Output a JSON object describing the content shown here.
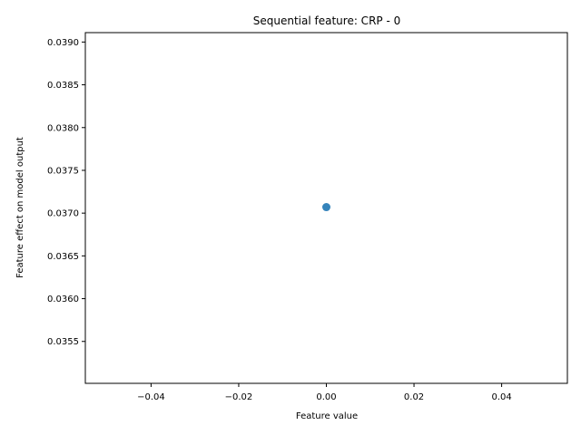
{
  "chart_data": {
    "type": "scatter",
    "title": "Sequential feature: CRP - 0",
    "xlabel": "Feature value",
    "ylabel": "Feature effect on model output",
    "xlim": [
      -0.055,
      0.055
    ],
    "ylim": [
      0.03501,
      0.03911
    ],
    "x_ticks": [
      -0.04,
      -0.02,
      0.0,
      0.02,
      0.04
    ],
    "x_tick_labels": [
      "−0.04",
      "−0.02",
      "0.00",
      "0.02",
      "0.04"
    ],
    "y_ticks": [
      0.0355,
      0.036,
      0.0365,
      0.037,
      0.0375,
      0.038,
      0.0385,
      0.039
    ],
    "y_tick_labels": [
      "0.0355",
      "0.0360",
      "0.0365",
      "0.0370",
      "0.0375",
      "0.0380",
      "0.0385",
      "0.0390"
    ],
    "grid": false,
    "legend": "none",
    "marker_color": "#1f77b4",
    "points": [
      {
        "x": 0.0,
        "y": 0.03707
      }
    ]
  }
}
